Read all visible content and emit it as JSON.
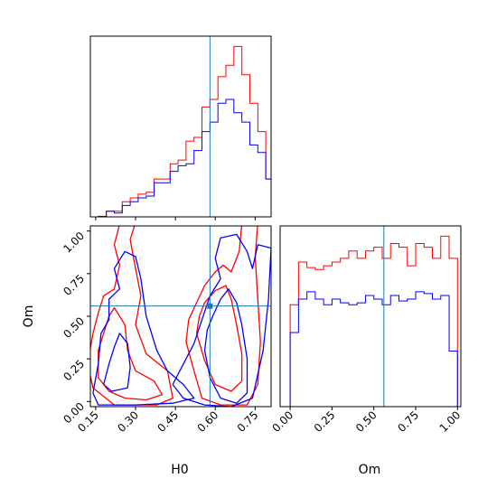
{
  "chart_data": {
    "type": "corner",
    "parameters": [
      "H0",
      "Om"
    ],
    "truth": {
      "H0": 0.58,
      "Om": 0.56,
      "color": "#1f77b4"
    },
    "series_colors": {
      "red": "#ff0000",
      "blue": "#0000ff"
    },
    "panels": {
      "h0_hist": {
        "type": "step-histogram",
        "xlim": [
          0.13,
          0.81
        ],
        "bin_edges": [
          0.16,
          0.19,
          0.22,
          0.25,
          0.28,
          0.31,
          0.34,
          0.37,
          0.4,
          0.43,
          0.46,
          0.49,
          0.52,
          0.55,
          0.58,
          0.61,
          0.64,
          0.67,
          0.7,
          0.73,
          0.76,
          0.79,
          0.81
        ],
        "series": [
          {
            "color": "red",
            "values": [
              0.3,
              3,
              3,
              8,
              10,
              12,
              13,
              20,
              20,
              28,
              30,
              40,
              42,
              58,
              62,
              74,
              80,
              90,
              75,
              60,
              45,
              20
            ]
          },
          {
            "color": "blue",
            "values": [
              0.2,
              3,
              2,
              6,
              8,
              10,
              11,
              18,
              18,
              24,
              27,
              28,
              35,
              45,
              50,
              60,
              62,
              55,
              50,
              38,
              34,
              20
            ]
          }
        ]
      },
      "contour": {
        "type": "contour",
        "xlim": [
          0.13,
          0.81
        ],
        "ylim": [
          -0.03,
          1.03
        ],
        "red_contours": [
          [
            [
              0.16,
              0.14
            ],
            [
              0.2,
              0.06
            ],
            [
              0.26,
              0.02
            ],
            [
              0.34,
              0.01
            ],
            [
              0.4,
              0.04
            ],
            [
              0.37,
              0.12
            ],
            [
              0.3,
              0.18
            ],
            [
              0.27,
              0.3
            ],
            [
              0.26,
              0.45
            ],
            [
              0.22,
              0.55
            ],
            [
              0.2,
              0.5
            ],
            [
              0.18,
              0.4
            ],
            [
              0.16,
              0.3
            ],
            [
              0.16,
              0.14
            ]
          ],
          [
            [
              0.12,
              0.22
            ],
            [
              0.14,
              0.08
            ],
            [
              0.22,
              -0.02
            ],
            [
              0.38,
              -0.02
            ],
            [
              0.44,
              0.02
            ],
            [
              0.42,
              0.18
            ],
            [
              0.34,
              0.28
            ],
            [
              0.3,
              0.45
            ],
            [
              0.32,
              0.62
            ],
            [
              0.3,
              0.78
            ],
            [
              0.28,
              0.95
            ],
            [
              0.3,
              1.05
            ],
            [
              0.24,
              1.04
            ],
            [
              0.22,
              0.92
            ],
            [
              0.24,
              0.8
            ],
            [
              0.22,
              0.66
            ],
            [
              0.18,
              0.62
            ],
            [
              0.16,
              0.52
            ],
            [
              0.14,
              0.4
            ],
            [
              0.12,
              0.22
            ]
          ],
          [
            [
              0.53,
              0.4
            ],
            [
              0.56,
              0.24
            ],
            [
              0.6,
              0.1
            ],
            [
              0.66,
              0.06
            ],
            [
              0.7,
              0.12
            ],
            [
              0.7,
              0.28
            ],
            [
              0.68,
              0.45
            ],
            [
              0.66,
              0.6
            ],
            [
              0.64,
              0.68
            ],
            [
              0.6,
              0.65
            ],
            [
              0.56,
              0.58
            ],
            [
              0.54,
              0.5
            ],
            [
              0.53,
              0.4
            ]
          ],
          [
            [
              0.49,
              0.35
            ],
            [
              0.52,
              0.18
            ],
            [
              0.55,
              0.02
            ],
            [
              0.62,
              -0.02
            ],
            [
              0.72,
              -0.02
            ],
            [
              0.76,
              0.1
            ],
            [
              0.77,
              0.35
            ],
            [
              0.76,
              0.6
            ],
            [
              0.75,
              0.85
            ],
            [
              0.76,
              1.05
            ],
            [
              0.7,
              1.04
            ],
            [
              0.69,
              0.88
            ],
            [
              0.66,
              0.76
            ],
            [
              0.63,
              0.8
            ],
            [
              0.6,
              0.76
            ],
            [
              0.56,
              0.68
            ],
            [
              0.53,
              0.58
            ],
            [
              0.5,
              0.48
            ],
            [
              0.49,
              0.35
            ]
          ]
        ],
        "blue_contours": [
          [
            [
              0.18,
              0.1
            ],
            [
              0.21,
              0.06
            ],
            [
              0.27,
              0.08
            ],
            [
              0.28,
              0.2
            ],
            [
              0.27,
              0.34
            ],
            [
              0.24,
              0.4
            ],
            [
              0.22,
              0.32
            ],
            [
              0.2,
              0.22
            ],
            [
              0.18,
              0.1
            ]
          ],
          [
            [
              0.14,
              0.05
            ],
            [
              0.16,
              -0.02
            ],
            [
              0.3,
              -0.02
            ],
            [
              0.44,
              -0.01
            ],
            [
              0.52,
              0.02
            ],
            [
              0.48,
              0.1
            ],
            [
              0.42,
              0.18
            ],
            [
              0.38,
              0.3
            ],
            [
              0.34,
              0.5
            ],
            [
              0.32,
              0.72
            ],
            [
              0.3,
              0.85
            ],
            [
              0.26,
              0.88
            ],
            [
              0.22,
              0.78
            ],
            [
              0.24,
              0.66
            ],
            [
              0.2,
              0.6
            ],
            [
              0.2,
              0.48
            ],
            [
              0.17,
              0.4
            ],
            [
              0.16,
              0.22
            ],
            [
              0.14,
              0.05
            ]
          ],
          [
            [
              0.56,
              0.3
            ],
            [
              0.58,
              0.14
            ],
            [
              0.62,
              0.02
            ],
            [
              0.68,
              -0.01
            ],
            [
              0.72,
              0.05
            ],
            [
              0.72,
              0.25
            ],
            [
              0.7,
              0.45
            ],
            [
              0.68,
              0.58
            ],
            [
              0.65,
              0.66
            ],
            [
              0.62,
              0.6
            ],
            [
              0.59,
              0.5
            ],
            [
              0.57,
              0.42
            ],
            [
              0.56,
              0.3
            ]
          ],
          [
            [
              0.44,
              0.1
            ],
            [
              0.48,
              0.02
            ],
            [
              0.56,
              -0.02
            ],
            [
              0.66,
              -0.03
            ],
            [
              0.74,
              0.02
            ],
            [
              0.78,
              0.3
            ],
            [
              0.8,
              0.6
            ],
            [
              0.81,
              0.9
            ],
            [
              0.76,
              0.92
            ],
            [
              0.74,
              0.78
            ],
            [
              0.72,
              0.88
            ],
            [
              0.68,
              0.98
            ],
            [
              0.62,
              0.96
            ],
            [
              0.6,
              0.84
            ],
            [
              0.62,
              0.72
            ],
            [
              0.58,
              0.62
            ],
            [
              0.55,
              0.48
            ],
            [
              0.52,
              0.34
            ],
            [
              0.48,
              0.22
            ],
            [
              0.44,
              0.1
            ]
          ]
        ]
      },
      "om_hist": {
        "type": "step-histogram",
        "xlim": [
          -0.06,
          1.02
        ],
        "bin_edges": [
          -0.05,
          0.0,
          0.05,
          0.1,
          0.15,
          0.2,
          0.25,
          0.3,
          0.35,
          0.4,
          0.45,
          0.5,
          0.55,
          0.6,
          0.65,
          0.7,
          0.75,
          0.8,
          0.85,
          0.9,
          0.95,
          1.0
        ],
        "series": [
          {
            "color": "red",
            "values": [
              0,
              55,
              78,
              75,
              74,
              76,
              78,
              80,
              84,
              80,
              84,
              86,
              80,
              88,
              86,
              76,
              88,
              86,
              80,
              92,
              80
            ]
          },
          {
            "color": "blue",
            "values": [
              0,
              40,
              58,
              62,
              58,
              55,
              58,
              56,
              55,
              56,
              60,
              58,
              55,
              60,
              57,
              58,
              62,
              61,
              58,
              60,
              30
            ]
          }
        ]
      }
    },
    "axes": {
      "h0_ticks": [
        "0.15",
        "0.30",
        "0.45",
        "0.60",
        "0.75"
      ],
      "h0_tick_values": [
        0.15,
        0.3,
        0.45,
        0.6,
        0.75
      ],
      "om_ticks": [
        "0.00",
        "0.25",
        "0.50",
        "0.75",
        "1.00"
      ],
      "om_tick_values": [
        0.0,
        0.25,
        0.5,
        0.75,
        1.0
      ],
      "xlabel_left": "H0",
      "xlabel_right": "Om",
      "ylabel": "Om"
    }
  }
}
